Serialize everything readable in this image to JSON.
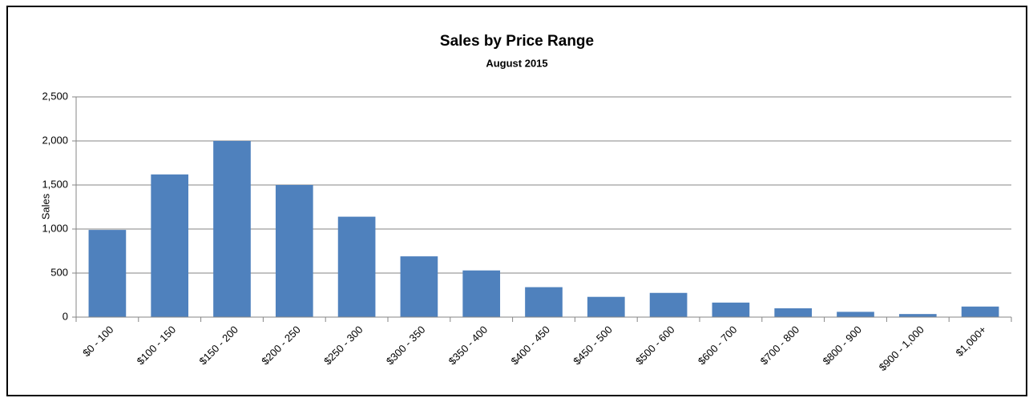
{
  "chart_data": {
    "type": "bar",
    "title": "Sales by Price Range",
    "subtitle": "August 2015",
    "ylabel": "Sales",
    "categories": [
      "$0 - 100",
      "$100 - 150",
      "$150 - 200",
      "$200 - 250",
      "$250 - 300",
      "$300 - 350",
      "$350 - 400",
      "$400 - 450",
      "$450 - 500",
      "$500 - 600",
      "$600 - 700",
      "$700 - 800",
      "$800 - 900",
      "$900 - 1,000",
      "$1,000+"
    ],
    "values": [
      990,
      1620,
      2000,
      1500,
      1140,
      690,
      530,
      340,
      230,
      275,
      165,
      100,
      60,
      35,
      120
    ],
    "color": "#4f81bd",
    "ylim": [
      0,
      2500
    ],
    "yticks": [
      0,
      500,
      {
        "value": 1000,
        "label": "1,000"
      },
      {
        "value": 1500,
        "label": "1,500"
      },
      {
        "value": 2000,
        "label": "2,000"
      },
      {
        "value": 2500,
        "label": "2,500"
      }
    ],
    "grid": true
  }
}
